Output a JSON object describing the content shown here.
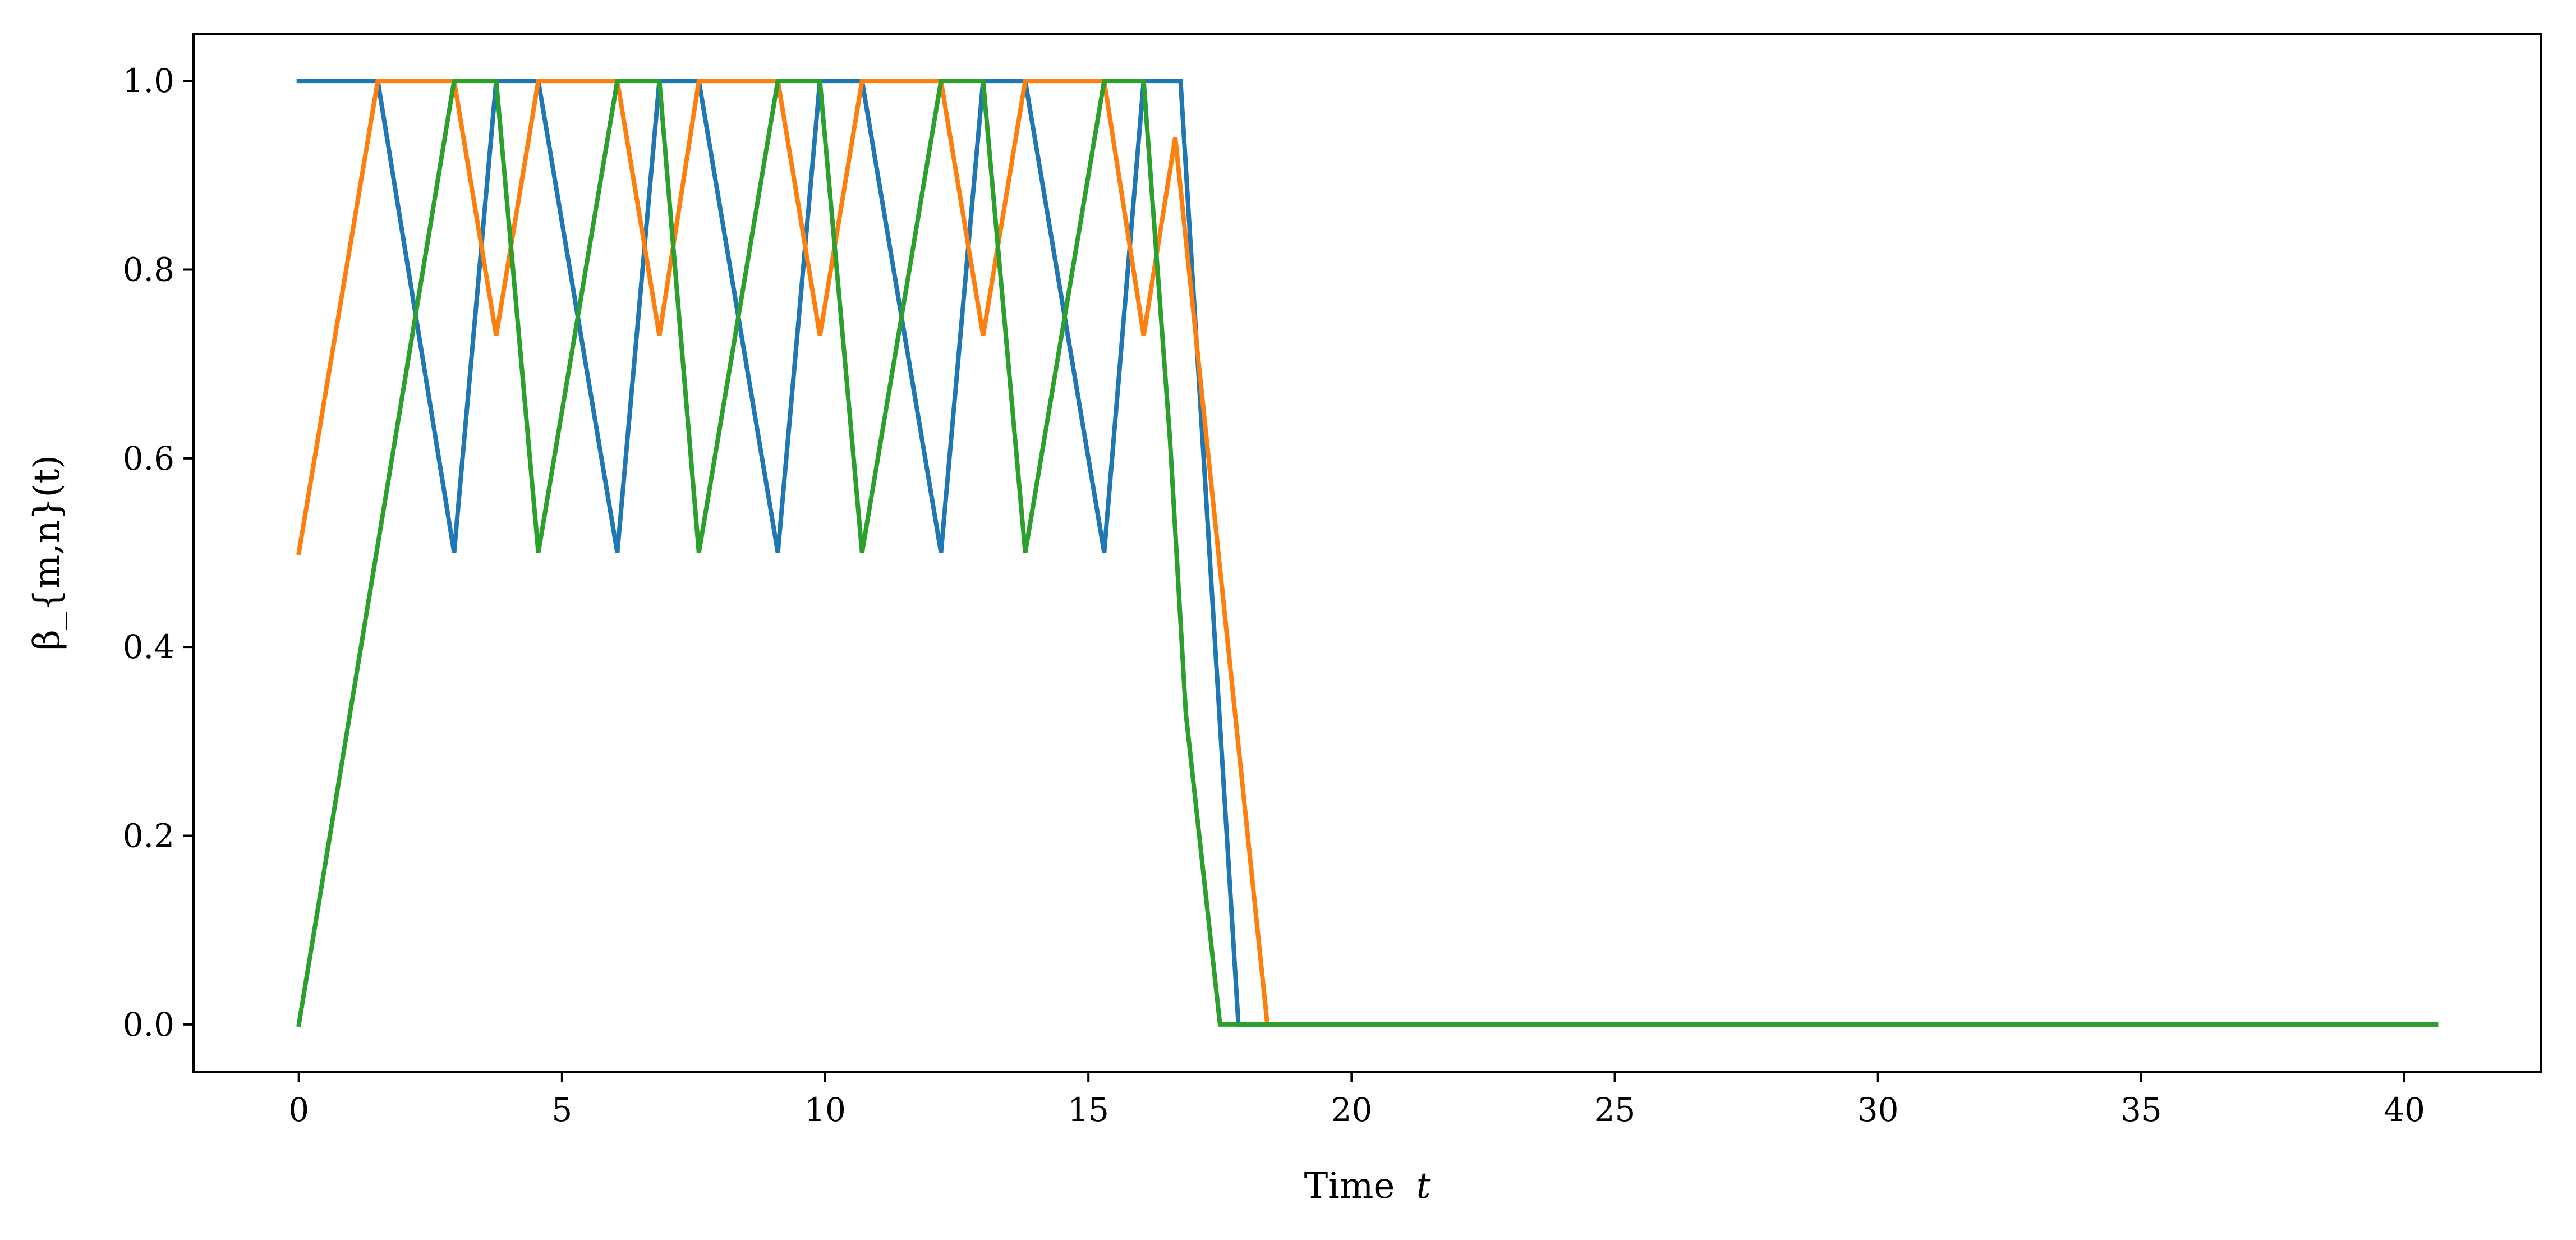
{
  "chart_data": {
    "type": "line",
    "title": "",
    "xlabel": "Time",
    "xlabel_var": "t",
    "ylabel": "β_{m,n}(t)",
    "xlim": [
      -2.0,
      42.6
    ],
    "ylim": [
      -0.05,
      1.05
    ],
    "xticks": [
      0,
      5,
      10,
      15,
      20,
      25,
      30,
      35,
      40
    ],
    "xtick_labels": [
      "0",
      "5",
      "10",
      "15",
      "20",
      "25",
      "30",
      "35",
      "40"
    ],
    "yticks": [
      0.0,
      0.2,
      0.4,
      0.6,
      0.8,
      1.0
    ],
    "ytick_labels": [
      "0.0",
      "0.2",
      "0.4",
      "0.6",
      "0.8",
      "1.0"
    ],
    "grid": false,
    "legend": "none",
    "series": [
      {
        "color": "#1f77b4",
        "points": [
          [
            0,
            1.0
          ],
          [
            1.5,
            1.0
          ],
          [
            2.95,
            0.5
          ],
          [
            3.75,
            1.0
          ],
          [
            4.55,
            1.0
          ],
          [
            6.05,
            0.5
          ],
          [
            6.85,
            1.0
          ],
          [
            7.6,
            1.0
          ],
          [
            9.1,
            0.5
          ],
          [
            9.9,
            1.0
          ],
          [
            10.7,
            1.0
          ],
          [
            12.2,
            0.5
          ],
          [
            13.0,
            1.0
          ],
          [
            13.8,
            1.0
          ],
          [
            15.3,
            0.5
          ],
          [
            16.05,
            1.0
          ],
          [
            16.75,
            1.0
          ],
          [
            17.85,
            0.0
          ],
          [
            40.6,
            0.0
          ]
        ]
      },
      {
        "color": "#ff7f0e",
        "points": [
          [
            0,
            0.5
          ],
          [
            1.5,
            1.0
          ],
          [
            2.95,
            1.0
          ],
          [
            3.75,
            0.73
          ],
          [
            4.55,
            1.0
          ],
          [
            6.05,
            1.0
          ],
          [
            6.85,
            0.73
          ],
          [
            7.6,
            1.0
          ],
          [
            9.1,
            1.0
          ],
          [
            9.9,
            0.73
          ],
          [
            10.7,
            1.0
          ],
          [
            12.2,
            1.0
          ],
          [
            13.0,
            0.73
          ],
          [
            13.8,
            1.0
          ],
          [
            15.3,
            1.0
          ],
          [
            16.05,
            0.73
          ],
          [
            16.65,
            0.94
          ],
          [
            18.4,
            0.0
          ],
          [
            40.6,
            0.0
          ]
        ]
      },
      {
        "color": "#2ca02c",
        "points": [
          [
            0,
            0.0
          ],
          [
            2.95,
            1.0
          ],
          [
            3.75,
            1.0
          ],
          [
            4.55,
            0.5
          ],
          [
            6.05,
            1.0
          ],
          [
            6.85,
            1.0
          ],
          [
            7.6,
            0.5
          ],
          [
            9.1,
            1.0
          ],
          [
            9.9,
            1.0
          ],
          [
            10.7,
            0.5
          ],
          [
            12.2,
            1.0
          ],
          [
            13.0,
            1.0
          ],
          [
            13.8,
            0.5
          ],
          [
            15.3,
            1.0
          ],
          [
            16.05,
            1.0
          ],
          [
            16.55,
            0.62
          ],
          [
            16.85,
            0.33
          ],
          [
            17.5,
            0.0
          ],
          [
            40.6,
            0.0
          ]
        ]
      }
    ]
  }
}
